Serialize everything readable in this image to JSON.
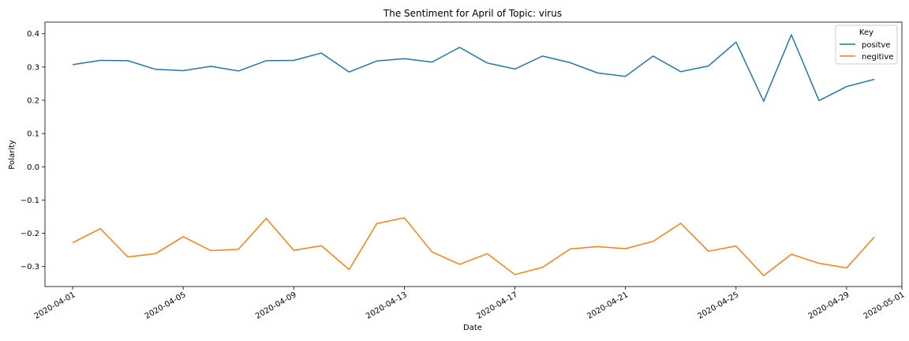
{
  "chart_data": {
    "type": "line",
    "title": "The Sentiment for April of Topic: virus",
    "xlabel": "Date",
    "ylabel": "Polarity",
    "x": [
      "2020-04-01",
      "2020-04-02",
      "2020-04-03",
      "2020-04-04",
      "2020-04-05",
      "2020-04-06",
      "2020-04-07",
      "2020-04-08",
      "2020-04-09",
      "2020-04-10",
      "2020-04-11",
      "2020-04-12",
      "2020-04-13",
      "2020-04-14",
      "2020-04-15",
      "2020-04-16",
      "2020-04-17",
      "2020-04-18",
      "2020-04-19",
      "2020-04-20",
      "2020-04-21",
      "2020-04-22",
      "2020-04-23",
      "2020-04-24",
      "2020-04-25",
      "2020-04-26",
      "2020-04-27",
      "2020-04-28",
      "2020-04-29",
      "2020-04-30"
    ],
    "x_ticks": [
      "2020-04-01",
      "2020-04-05",
      "2020-04-09",
      "2020-04-13",
      "2020-04-17",
      "2020-04-21",
      "2020-04-25",
      "2020-04-29",
      "2020-05-01"
    ],
    "xlim": [
      "2020-03-31",
      "2020-05-01"
    ],
    "y_ticks": [
      0.4,
      0.3,
      0.2,
      0.1,
      0.0,
      -0.1,
      -0.2,
      -0.3
    ],
    "y_tick_labels": [
      "0.4",
      "0.3",
      "0.2",
      "0.1",
      "0.0",
      "−0.1",
      "−0.2",
      "−0.3"
    ],
    "ylim": [
      -0.36,
      0.435
    ],
    "legend": {
      "title": "Key",
      "position": "top-right"
    },
    "series": [
      {
        "name": "positve",
        "color": "#1f77b4",
        "values": [
          0.307,
          0.32,
          0.319,
          0.293,
          0.289,
          0.302,
          0.288,
          0.319,
          0.32,
          0.342,
          0.285,
          0.318,
          0.325,
          0.315,
          0.359,
          0.312,
          0.294,
          0.333,
          0.313,
          0.282,
          0.272,
          0.333,
          0.286,
          0.303,
          0.375,
          0.197,
          0.397,
          0.199,
          0.241,
          0.263
        ]
      },
      {
        "name": "negitive",
        "color": "#ff7f0e",
        "values": [
          -0.228,
          -0.186,
          -0.271,
          -0.261,
          -0.21,
          -0.252,
          -0.248,
          -0.155,
          -0.251,
          -0.237,
          -0.309,
          -0.171,
          -0.153,
          -0.256,
          -0.293,
          -0.261,
          -0.324,
          -0.302,
          -0.247,
          -0.24,
          -0.246,
          -0.224,
          -0.17,
          -0.254,
          -0.238,
          -0.327,
          -0.263,
          -0.29,
          -0.304,
          -0.211
        ]
      }
    ]
  }
}
